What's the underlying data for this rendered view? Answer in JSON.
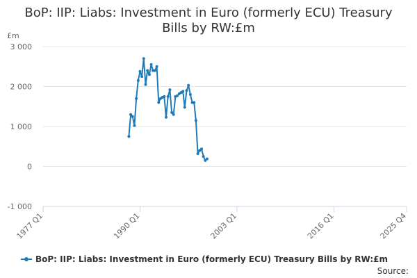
{
  "title_line1": "BoP: IIP: Liabs: Investment in Euro (formerly ECU) Treasury",
  "title_line2": "Bills by RW:£m",
  "source": "Source:",
  "colors": {
    "series": "#1f7ab8",
    "grid": "#e6e6e6",
    "axis": "#ccd6eb"
  },
  "chart_data": {
    "type": "line",
    "title": "BoP: IIP: Liabs: Investment in Euro (formerly ECU) Treasury Bills by RW:£m",
    "ylabel": "£m",
    "ylim": [
      -1000,
      3000
    ],
    "yticks": [
      -1000,
      0,
      1000,
      2000,
      3000
    ],
    "ytick_labels": [
      "-1 000",
      "0",
      "1 000",
      "2 000",
      "3 000"
    ],
    "xlim": [
      "1977 Q1",
      "2025 Q4"
    ],
    "xticks": [
      "1977 Q1",
      "1990 Q1",
      "2003 Q1",
      "2016 Q1",
      "2025 Q4"
    ],
    "grid": "horizontal",
    "legend_position": "bottom",
    "series": [
      {
        "name": "BoP: IIP: Liabs: Investment in Euro (formerly ECU) Treasury Bills by RW:£m",
        "points": [
          [
            "1988 Q3",
            750
          ],
          [
            "1988 Q4",
            1300
          ],
          [
            "1989 Q1",
            1250
          ],
          [
            "1989 Q2",
            1020
          ],
          [
            "1989 Q3",
            1700
          ],
          [
            "1989 Q4",
            2150
          ],
          [
            "1990 Q1",
            2380
          ],
          [
            "1990 Q2",
            2250
          ],
          [
            "1990 Q3",
            2700
          ],
          [
            "1990 Q4",
            2050
          ],
          [
            "1991 Q1",
            2400
          ],
          [
            "1991 Q2",
            2300
          ],
          [
            "1991 Q3",
            2550
          ],
          [
            "1991 Q4",
            2400
          ],
          [
            "1992 Q1",
            2400
          ],
          [
            "1992 Q2",
            2500
          ],
          [
            "1992 Q3",
            1600
          ],
          [
            "1992 Q4",
            1700
          ],
          [
            "1993 Q1",
            1730
          ],
          [
            "1993 Q2",
            1750
          ],
          [
            "1993 Q3",
            1230
          ],
          [
            "1993 Q4",
            1750
          ],
          [
            "1994 Q1",
            1920
          ],
          [
            "1994 Q2",
            1350
          ],
          [
            "1994 Q3",
            1300
          ],
          [
            "1994 Q4",
            1750
          ],
          [
            "1995 Q1",
            1770
          ],
          [
            "1995 Q2",
            1820
          ],
          [
            "1995 Q3",
            1850
          ],
          [
            "1995 Q4",
            1880
          ],
          [
            "1996 Q1",
            1480
          ],
          [
            "1996 Q2",
            1900
          ],
          [
            "1996 Q3",
            2030
          ],
          [
            "1996 Q4",
            1800
          ],
          [
            "1997 Q1",
            1600
          ],
          [
            "1997 Q2",
            1600
          ],
          [
            "1997 Q3",
            1150
          ],
          [
            "1997 Q4",
            320
          ],
          [
            "1998 Q1",
            400
          ],
          [
            "1998 Q2",
            440
          ],
          [
            "1998 Q3",
            250
          ],
          [
            "1998 Q4",
            150
          ],
          [
            "1999 Q1",
            190
          ]
        ]
      }
    ]
  }
}
